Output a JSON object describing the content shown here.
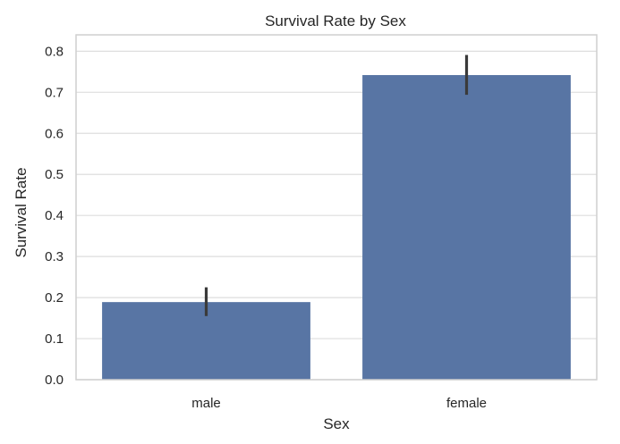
{
  "chart_data": {
    "type": "bar",
    "title": "Survival Rate by Sex",
    "xlabel": "Sex",
    "ylabel": "Survival Rate",
    "categories": [
      "male",
      "female"
    ],
    "values": [
      0.189,
      0.742
    ],
    "error_bars": [
      [
        0.155,
        0.225
      ],
      [
        0.694,
        0.791
      ]
    ],
    "ylim": [
      0,
      0.84
    ],
    "yticks": [
      0.0,
      0.1,
      0.2,
      0.3,
      0.4,
      0.5,
      0.6,
      0.7,
      0.8
    ],
    "ytick_labels": [
      "0.0",
      "0.1",
      "0.2",
      "0.3",
      "0.4",
      "0.5",
      "0.6",
      "0.7",
      "0.8"
    ],
    "grid": "horizontal",
    "bar_color": "#5875a4",
    "error_color": "#3a3a3a"
  }
}
